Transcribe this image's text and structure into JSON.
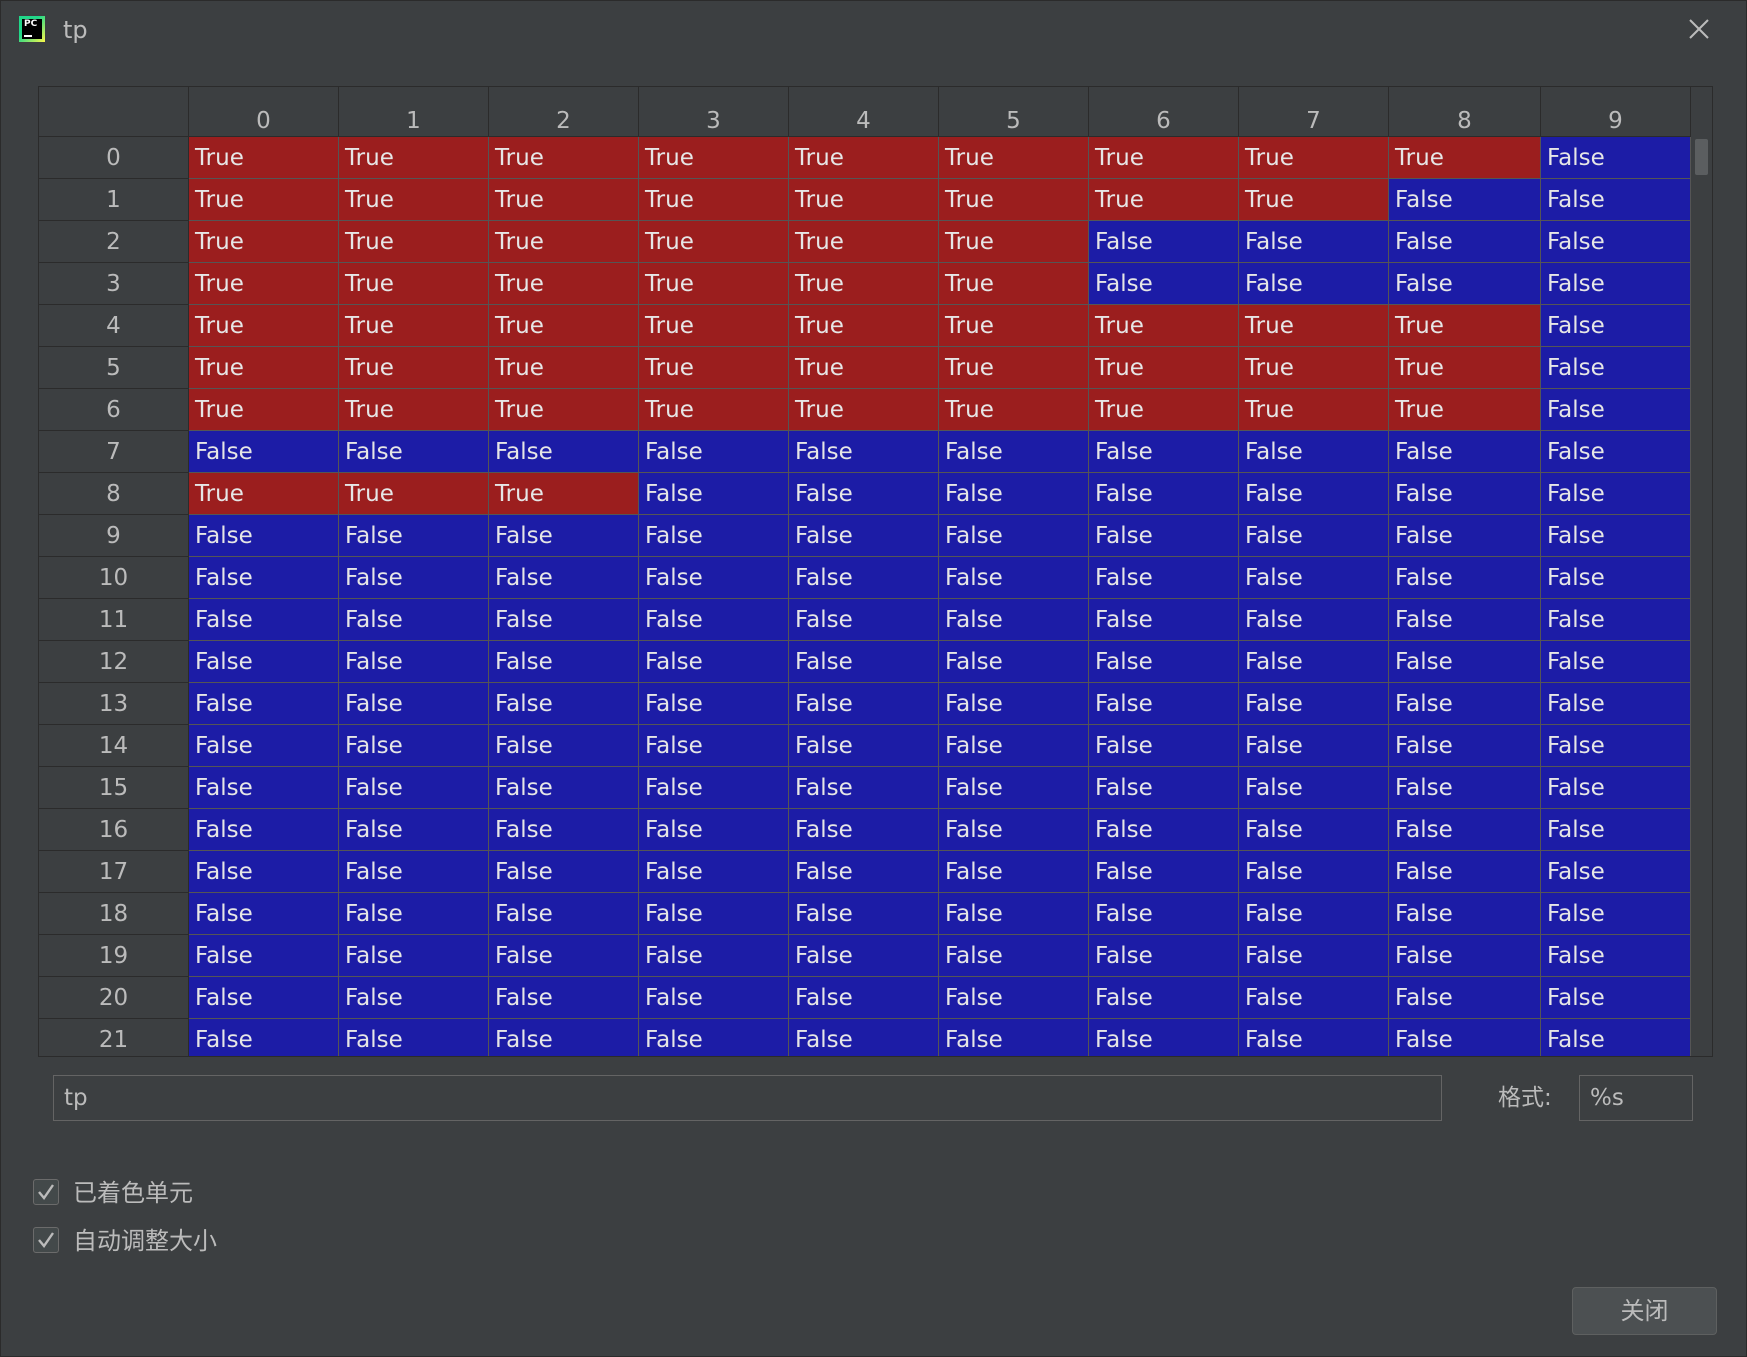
{
  "window": {
    "title": "tp",
    "app_icon_text": "PC"
  },
  "table": {
    "columns": [
      "0",
      "1",
      "2",
      "3",
      "4",
      "5",
      "6",
      "7",
      "8",
      "9"
    ],
    "rows": [
      {
        "label": "0",
        "cells": [
          "True",
          "True",
          "True",
          "True",
          "True",
          "True",
          "True",
          "True",
          "True",
          "False"
        ]
      },
      {
        "label": "1",
        "cells": [
          "True",
          "True",
          "True",
          "True",
          "True",
          "True",
          "True",
          "True",
          "False",
          "False"
        ]
      },
      {
        "label": "2",
        "cells": [
          "True",
          "True",
          "True",
          "True",
          "True",
          "True",
          "False",
          "False",
          "False",
          "False"
        ]
      },
      {
        "label": "3",
        "cells": [
          "True",
          "True",
          "True",
          "True",
          "True",
          "True",
          "False",
          "False",
          "False",
          "False"
        ]
      },
      {
        "label": "4",
        "cells": [
          "True",
          "True",
          "True",
          "True",
          "True",
          "True",
          "True",
          "True",
          "True",
          "False"
        ]
      },
      {
        "label": "5",
        "cells": [
          "True",
          "True",
          "True",
          "True",
          "True",
          "True",
          "True",
          "True",
          "True",
          "False"
        ]
      },
      {
        "label": "6",
        "cells": [
          "True",
          "True",
          "True",
          "True",
          "True",
          "True",
          "True",
          "True",
          "True",
          "False"
        ]
      },
      {
        "label": "7",
        "cells": [
          "False",
          "False",
          "False",
          "False",
          "False",
          "False",
          "False",
          "False",
          "False",
          "False"
        ]
      },
      {
        "label": "8",
        "cells": [
          "True",
          "True",
          "True",
          "False",
          "False",
          "False",
          "False",
          "False",
          "False",
          "False"
        ]
      },
      {
        "label": "9",
        "cells": [
          "False",
          "False",
          "False",
          "False",
          "False",
          "False",
          "False",
          "False",
          "False",
          "False"
        ]
      },
      {
        "label": "10",
        "cells": [
          "False",
          "False",
          "False",
          "False",
          "False",
          "False",
          "False",
          "False",
          "False",
          "False"
        ]
      },
      {
        "label": "11",
        "cells": [
          "False",
          "False",
          "False",
          "False",
          "False",
          "False",
          "False",
          "False",
          "False",
          "False"
        ]
      },
      {
        "label": "12",
        "cells": [
          "False",
          "False",
          "False",
          "False",
          "False",
          "False",
          "False",
          "False",
          "False",
          "False"
        ]
      },
      {
        "label": "13",
        "cells": [
          "False",
          "False",
          "False",
          "False",
          "False",
          "False",
          "False",
          "False",
          "False",
          "False"
        ]
      },
      {
        "label": "14",
        "cells": [
          "False",
          "False",
          "False",
          "False",
          "False",
          "False",
          "False",
          "False",
          "False",
          "False"
        ]
      },
      {
        "label": "15",
        "cells": [
          "False",
          "False",
          "False",
          "False",
          "False",
          "False",
          "False",
          "False",
          "False",
          "False"
        ]
      },
      {
        "label": "16",
        "cells": [
          "False",
          "False",
          "False",
          "False",
          "False",
          "False",
          "False",
          "False",
          "False",
          "False"
        ]
      },
      {
        "label": "17",
        "cells": [
          "False",
          "False",
          "False",
          "False",
          "False",
          "False",
          "False",
          "False",
          "False",
          "False"
        ]
      },
      {
        "label": "18",
        "cells": [
          "False",
          "False",
          "False",
          "False",
          "False",
          "False",
          "False",
          "False",
          "False",
          "False"
        ]
      },
      {
        "label": "19",
        "cells": [
          "False",
          "False",
          "False",
          "False",
          "False",
          "False",
          "False",
          "False",
          "False",
          "False"
        ]
      },
      {
        "label": "20",
        "cells": [
          "False",
          "False",
          "False",
          "False",
          "False",
          "False",
          "False",
          "False",
          "False",
          "False"
        ]
      },
      {
        "label": "21",
        "cells": [
          "False",
          "False",
          "False",
          "False",
          "False",
          "False",
          "False",
          "False",
          "False",
          "False"
        ]
      }
    ],
    "colors": {
      "true_cell": "#9b1e1e",
      "false_cell": "#1c1ca6"
    }
  },
  "controls": {
    "expression_value": "tp",
    "format_label": "格式:",
    "format_value": "%s",
    "checkbox_colored_cells": {
      "label": "已着色单元",
      "checked": true
    },
    "checkbox_auto_resize": {
      "label": "自动调整大小",
      "checked": true
    },
    "close_button_label": "关闭"
  },
  "icons": {
    "close": "close-x-icon",
    "checkmark": "checkmark-icon",
    "app": "pycharm-icon"
  }
}
